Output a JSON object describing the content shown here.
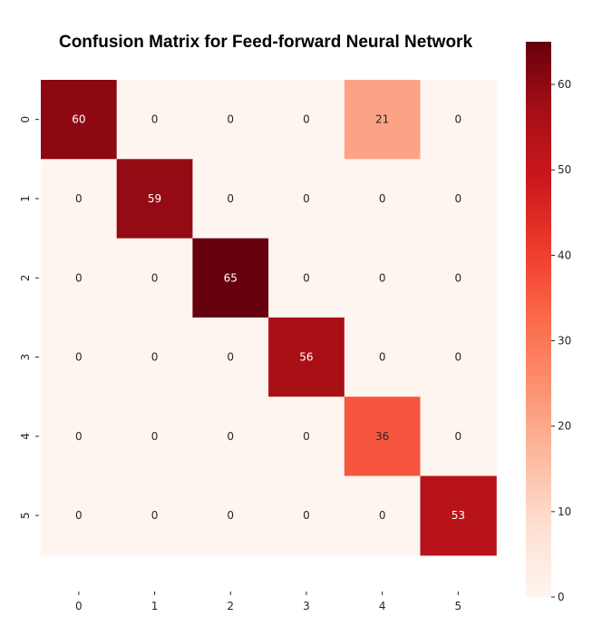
{
  "chart_data": {
    "type": "heatmap",
    "title": "Confusion Matrix for Feed-forward Neural Network",
    "x_categories": [
      "0",
      "1",
      "2",
      "3",
      "4",
      "5"
    ],
    "y_categories": [
      "0",
      "1",
      "2",
      "3",
      "4",
      "5"
    ],
    "values": [
      [
        60,
        0,
        0,
        0,
        21,
        0
      ],
      [
        0,
        59,
        0,
        0,
        0,
        0
      ],
      [
        0,
        0,
        65,
        0,
        0,
        0
      ],
      [
        0,
        0,
        0,
        56,
        0,
        0
      ],
      [
        0,
        0,
        0,
        0,
        36,
        0
      ],
      [
        0,
        0,
        0,
        0,
        0,
        53
      ]
    ],
    "colormap": "Reds",
    "vmin": 0,
    "vmax": 65,
    "colorbar_ticks": [
      0,
      10,
      20,
      30,
      40,
      50,
      60
    ],
    "annotate": true
  }
}
